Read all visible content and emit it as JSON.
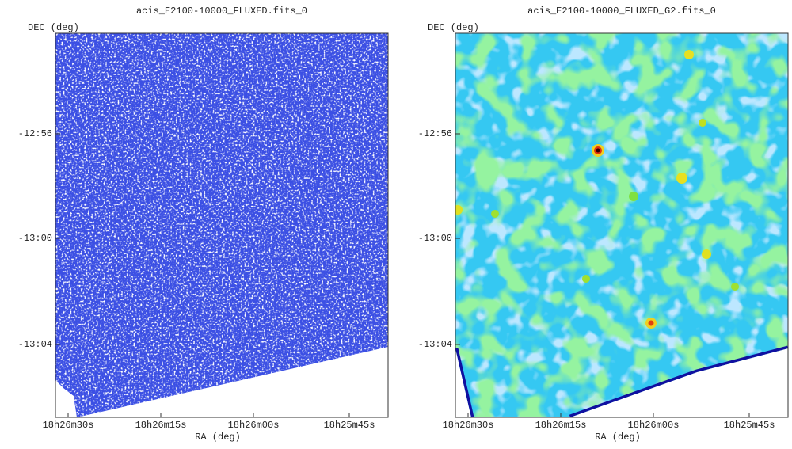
{
  "panels": [
    {
      "title": "acis_E2100-10000_FLUXED.fits_0",
      "y_axis_label": "DEC (deg)",
      "x_axis_label": "RA (deg)",
      "y_ticks": [
        "-12:56",
        "-13:00",
        "-13:04"
      ],
      "x_ticks": [
        "18h26m30s",
        "18h26m15s",
        "18h26m00s",
        "18h25m45s"
      ]
    },
    {
      "title": "acis_E2100-10000_FLUXED_G2.fits_0",
      "y_axis_label": "DEC (deg)",
      "x_axis_label": "RA (deg)",
      "y_ticks": [
        "-12:56",
        "-13:00",
        "-13:04"
      ],
      "x_ticks": [
        "18h26m30s",
        "18h26m15s",
        "18h26m00s",
        "18h25m45s"
      ]
    }
  ]
}
